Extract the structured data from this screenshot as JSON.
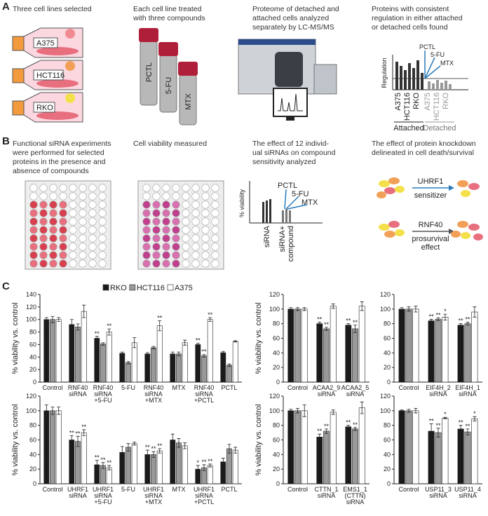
{
  "panel_a": {
    "label": "A",
    "step1": {
      "caption": [
        "Three cell lines selected"
      ],
      "cell_lines": [
        "A375",
        "HCT116",
        "RKO"
      ]
    },
    "step2": {
      "caption": [
        "Each cell line treated",
        "with three compounds"
      ],
      "compounds": [
        "PCTL",
        "5-FU",
        "MTX"
      ]
    },
    "step3": {
      "caption": [
        "Proteome of detached and",
        "attached cells analyzed",
        "separately by LC-MS/MS"
      ]
    },
    "step4": {
      "caption": [
        "Proteins with consistent",
        "regulation in either attached",
        "or detached cells found"
      ],
      "axis_label": "Regulation",
      "compounds": [
        "PCTL",
        "5-FU",
        "MTX"
      ],
      "attached_lines": [
        "A375",
        "HCT116",
        "RKO"
      ],
      "attached": "Attached",
      "detached_lines": [
        "A375",
        "HCT116",
        "RKO"
      ],
      "detached": "Detached"
    }
  },
  "panel_b": {
    "label": "B",
    "step1": {
      "caption": [
        "Functional siRNA experiments",
        "were performed for selected",
        "proteins in the presence and",
        "absence of compounds"
      ]
    },
    "step2": {
      "caption": [
        "Cell viability measured"
      ]
    },
    "step3": {
      "caption": [
        "The effect of 12 individ-",
        "ual siRNAs on compound",
        "sensitivity analyzed"
      ],
      "axis_label": "% viability",
      "compounds": [
        "PCTL",
        "5-FU",
        "MTX"
      ],
      "group1": "siRNA",
      "group2": [
        "siRNA+",
        "compound"
      ]
    },
    "step4": {
      "caption": [
        "The effect of protein knockdown",
        "delineated in cell death/survival"
      ],
      "protein1": "UHRF1",
      "effect1": "sensitizer",
      "protein2": "RNF40",
      "effect2": [
        "prosurvival",
        "effect"
      ]
    }
  },
  "panel_c": {
    "label": "C"
  },
  "chart_data": [
    {
      "type": "bar",
      "ylabel": "% viability vs. control",
      "ylim": [
        0,
        140
      ],
      "yticks": [
        0,
        20,
        40,
        60,
        80,
        100,
        120,
        140
      ],
      "legend": true,
      "categories": [
        "Control",
        "RNF40 siRNA",
        "RNF40 siRNA +5-FU",
        "5-FU",
        "RNF40 siRNA +MTX",
        "MTX",
        "RNF40 siRNA +PCTL",
        "PCTL"
      ],
      "series": [
        {
          "name": "RKO",
          "color": "#1a1a1a",
          "values": [
            100,
            92,
            70,
            46,
            45,
            45,
            60,
            47
          ],
          "errors": [
            3,
            8,
            3,
            2,
            2,
            3,
            2,
            2
          ],
          "stars": [
            null,
            null,
            "**",
            null,
            null,
            null,
            "**",
            null
          ]
        },
        {
          "name": "HCT116",
          "color": "#999999",
          "values": [
            100,
            88,
            61,
            31,
            55,
            45,
            42,
            27
          ],
          "errors": [
            5,
            5,
            2,
            2,
            2,
            3,
            2,
            2
          ],
          "stars": [
            null,
            null,
            null,
            null,
            null,
            null,
            "**",
            null
          ]
        },
        {
          "name": "A375",
          "color": "#ffffff",
          "values": [
            100,
            113,
            80,
            63,
            90,
            63,
            100,
            65
          ],
          "errors": [
            3,
            10,
            5,
            8,
            8,
            4,
            3,
            1
          ],
          "stars": [
            null,
            null,
            "**",
            null,
            "**",
            null,
            "**",
            null
          ]
        }
      ]
    },
    {
      "type": "bar",
      "ylabel": "% viability vs. control",
      "ylim": [
        0,
        120
      ],
      "yticks": [
        0,
        20,
        40,
        60,
        80,
        100,
        120
      ],
      "legend": false,
      "categories": [
        "Control",
        "ACAA2_9 siRNA",
        "ACAA2_5 siRNA"
      ],
      "series": [
        {
          "color": "#1a1a1a",
          "values": [
            100,
            80,
            78
          ],
          "errors": [
            2,
            2,
            2
          ],
          "stars": [
            null,
            "**",
            "**"
          ]
        },
        {
          "color": "#999999",
          "values": [
            100,
            73,
            73
          ],
          "errors": [
            2,
            2,
            5
          ],
          "stars": [
            null,
            "**",
            "**"
          ]
        },
        {
          "color": "#ffffff",
          "values": [
            100,
            104,
            104
          ],
          "errors": [
            2,
            3,
            6
          ],
          "stars": [
            null,
            null,
            null
          ]
        }
      ]
    },
    {
      "type": "bar",
      "ylim": [
        0,
        120
      ],
      "yticks": [
        0,
        20,
        40,
        60,
        80,
        100,
        120
      ],
      "legend": false,
      "categories": [
        "Control",
        "EIF4H_2 siRNA",
        "EIF4H_1 siRNA"
      ],
      "series": [
        {
          "color": "#1a1a1a",
          "values": [
            100,
            84,
            78
          ],
          "errors": [
            2,
            2,
            2
          ],
          "stars": [
            null,
            "**",
            "**"
          ]
        },
        {
          "color": "#999999",
          "values": [
            100,
            86,
            80
          ],
          "errors": [
            3,
            2,
            2
          ],
          "stars": [
            null,
            "**",
            "**"
          ]
        },
        {
          "color": "#ffffff",
          "values": [
            100,
            89,
            96
          ],
          "errors": [
            4,
            4,
            7
          ],
          "stars": [
            null,
            "*",
            null
          ]
        }
      ]
    },
    {
      "type": "bar",
      "ylabel": "% viability vs. control",
      "ylim": [
        0,
        120
      ],
      "yticks": [
        0,
        20,
        40,
        60,
        80,
        100,
        120
      ],
      "legend": false,
      "categories": [
        "Control",
        "UHRF1 siRNA",
        "UHRF1 siRNA +5-FU",
        "5-FU",
        "UHRF1 siRNA +MTX",
        "MTX",
        "UHRF1 siRNA +PCTL",
        "PCTL"
      ],
      "series": [
        {
          "color": "#1a1a1a",
          "values": [
            100,
            60,
            26,
            43,
            40,
            60,
            20,
            30
          ],
          "errors": [
            8,
            6,
            6,
            8,
            6,
            8,
            5,
            5
          ],
          "stars": [
            null,
            "**",
            "**",
            null,
            "**",
            null,
            "*",
            null
          ]
        },
        {
          "color": "#999999",
          "values": [
            100,
            58,
            25,
            50,
            40,
            56,
            22,
            48
          ],
          "errors": [
            5,
            7,
            4,
            5,
            4,
            6,
            4,
            6
          ],
          "stars": [
            null,
            "**",
            "**",
            null,
            "**",
            null,
            "**",
            null
          ]
        },
        {
          "color": "#ffffff",
          "values": [
            100,
            70,
            22,
            55,
            45,
            52,
            25,
            46
          ],
          "errors": [
            5,
            4,
            3,
            2,
            3,
            4,
            2,
            4
          ],
          "stars": [
            null,
            "**",
            "**",
            null,
            "**",
            null,
            "**",
            null
          ]
        }
      ]
    },
    {
      "type": "bar",
      "ylabel": "% viability vs. control",
      "ylim": [
        0,
        120
      ],
      "yticks": [
        0,
        20,
        40,
        60,
        80,
        100,
        120
      ],
      "legend": false,
      "categories": [
        "Control",
        "CTTN_1 siRNA",
        "EMS1_1 (CTTN) siRNA"
      ],
      "series": [
        {
          "color": "#1a1a1a",
          "values": [
            100,
            64,
            78
          ],
          "errors": [
            2,
            4,
            2
          ],
          "stars": [
            null,
            "**",
            "**"
          ]
        },
        {
          "color": "#999999",
          "values": [
            100,
            72,
            75
          ],
          "errors": [
            3,
            3,
            2
          ],
          "stars": [
            null,
            "**",
            "**"
          ]
        },
        {
          "color": "#ffffff",
          "values": [
            100,
            98,
            104
          ],
          "errors": [
            8,
            3,
            8
          ],
          "stars": [
            null,
            null,
            null
          ]
        }
      ]
    },
    {
      "type": "bar",
      "ylim": [
        0,
        120
      ],
      "yticks": [
        0,
        20,
        40,
        60,
        80,
        100,
        120
      ],
      "legend": false,
      "categories": [
        "Control",
        "USP11_3 siRNA",
        "USP11_4 siRNA"
      ],
      "series": [
        {
          "color": "#1a1a1a",
          "values": [
            100,
            72,
            75
          ],
          "errors": [
            1,
            10,
            5
          ],
          "stars": [
            null,
            "**",
            "**"
          ]
        },
        {
          "color": "#999999",
          "values": [
            100,
            70,
            71
          ],
          "errors": [
            2,
            6,
            4
          ],
          "stars": [
            null,
            "**",
            "**"
          ]
        },
        {
          "color": "#ffffff",
          "values": [
            100,
            90,
            89
          ],
          "errors": [
            3,
            1,
            3
          ],
          "stars": [
            null,
            "*",
            "*"
          ]
        }
      ]
    }
  ]
}
